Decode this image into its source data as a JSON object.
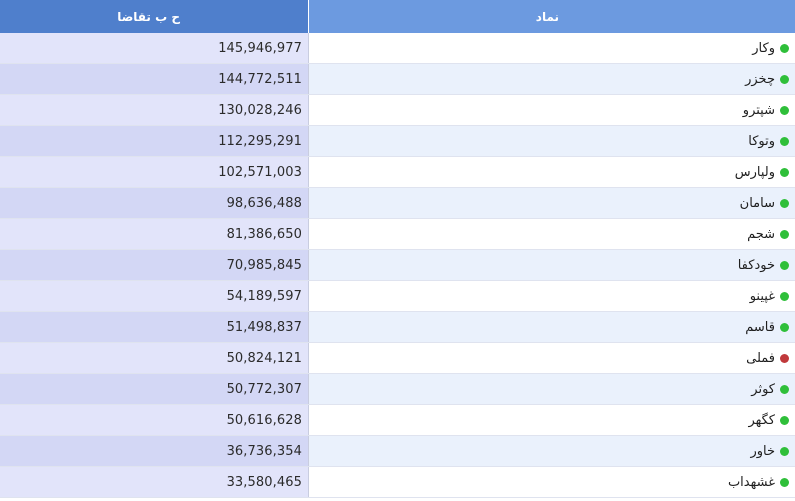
{
  "table": {
    "headers": {
      "volume": "ح ب تقاضا",
      "symbol": "نماد"
    },
    "rows": [
      {
        "symbol": "وکار",
        "volume": "145,946,977",
        "status": "green",
        "dot_color": "#2fbf3a"
      },
      {
        "symbol": "چخزر",
        "volume": "144,772,511",
        "status": "green",
        "dot_color": "#2fbf3a"
      },
      {
        "symbol": "شپترو",
        "volume": "130,028,246",
        "status": "green",
        "dot_color": "#2fbf3a"
      },
      {
        "symbol": "وتوکا",
        "volume": "112,295,291",
        "status": "green",
        "dot_color": "#2fbf3a"
      },
      {
        "symbol": "ولپارس",
        "volume": "102,571,003",
        "status": "green",
        "dot_color": "#2fbf3a"
      },
      {
        "symbol": "سامان",
        "volume": "98,636,488",
        "status": "green",
        "dot_color": "#2fbf3a"
      },
      {
        "symbol": "شجم",
        "volume": "81,386,650",
        "status": "green",
        "dot_color": "#2fbf3a"
      },
      {
        "symbol": "خودکفا",
        "volume": "70,985,845",
        "status": "green",
        "dot_color": "#2fbf3a"
      },
      {
        "symbol": "غپینو",
        "volume": "54,189,597",
        "status": "green",
        "dot_color": "#2fbf3a"
      },
      {
        "symbol": "قاسم",
        "volume": "51,498,837",
        "status": "green",
        "dot_color": "#2fbf3a"
      },
      {
        "symbol": "فملی",
        "volume": "50,824,121",
        "status": "red",
        "dot_color": "#c0393b"
      },
      {
        "symbol": "کوثر",
        "volume": "50,772,307",
        "status": "green",
        "dot_color": "#2fbf3a"
      },
      {
        "symbol": "کگهر",
        "volume": "50,616,628",
        "status": "green",
        "dot_color": "#2fbf3a"
      },
      {
        "symbol": "خاور",
        "volume": "36,736,354",
        "status": "green",
        "dot_color": "#2fbf3a"
      },
      {
        "symbol": "غشهداب",
        "volume": "33,580,465",
        "status": "green",
        "dot_color": "#2fbf3a"
      }
    ]
  },
  "colors": {
    "header_volume_bg": "#4f7fcc",
    "header_symbol_bg": "#6c9ae0",
    "status_green": "#2fbf3a",
    "status_red": "#c0393b"
  }
}
